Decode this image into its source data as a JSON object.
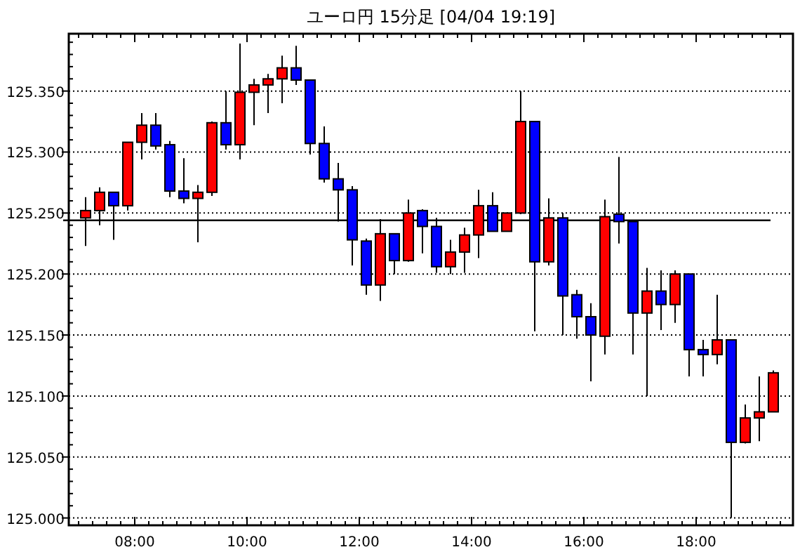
{
  "chart_data": {
    "type": "candlestick",
    "title": "ユーロ円 15分足 [04/04 19:19]",
    "x": [
      7.125,
      7.375,
      7.625,
      7.875,
      8.125,
      8.375,
      8.625,
      8.875,
      9.125,
      9.375,
      9.625,
      9.875,
      10.125,
      10.375,
      10.625,
      10.875,
      11.125,
      11.375,
      11.625,
      11.875,
      12.125,
      12.375,
      12.625,
      12.875,
      13.125,
      13.375,
      13.625,
      13.875,
      14.125,
      14.375,
      14.625,
      14.875,
      15.125,
      15.375,
      15.625,
      15.875,
      16.125,
      16.375,
      16.625,
      16.875,
      17.125,
      17.375,
      17.625,
      17.875,
      18.125,
      18.375,
      18.625,
      18.875,
      19.125,
      19.375
    ],
    "ohlc": [
      [
        125.246,
        125.263,
        125.223,
        125.252
      ],
      [
        125.252,
        125.271,
        125.24,
        125.267
      ],
      [
        125.267,
        125.267,
        125.228,
        125.256
      ],
      [
        125.256,
        125.308,
        125.252,
        125.308
      ],
      [
        125.308,
        125.332,
        125.294,
        125.322
      ],
      [
        125.322,
        125.332,
        125.302,
        125.305
      ],
      [
        125.306,
        125.309,
        125.263,
        125.268
      ],
      [
        125.268,
        125.295,
        125.258,
        125.262
      ],
      [
        125.262,
        125.273,
        125.226,
        125.267
      ],
      [
        125.267,
        125.325,
        125.264,
        125.324
      ],
      [
        125.324,
        125.35,
        125.302,
        125.306
      ],
      [
        125.306,
        125.389,
        125.294,
        125.349
      ],
      [
        125.349,
        125.36,
        125.322,
        125.355
      ],
      [
        125.355,
        125.364,
        125.332,
        125.36
      ],
      [
        125.36,
        125.379,
        125.34,
        125.369
      ],
      [
        125.369,
        125.387,
        125.355,
        125.359
      ],
      [
        125.359,
        125.359,
        125.298,
        125.307
      ],
      [
        125.307,
        125.321,
        125.275,
        125.278
      ],
      [
        125.278,
        125.291,
        125.243,
        125.269
      ],
      [
        125.269,
        125.272,
        125.207,
        125.228
      ],
      [
        125.227,
        125.229,
        125.183,
        125.191
      ],
      [
        125.191,
        125.245,
        125.178,
        125.233
      ],
      [
        125.233,
        125.233,
        125.2,
        125.211
      ],
      [
        125.211,
        125.261,
        125.21,
        125.25
      ],
      [
        125.252,
        125.253,
        125.217,
        125.239
      ],
      [
        125.239,
        125.246,
        125.201,
        125.206
      ],
      [
        125.206,
        125.228,
        125.2,
        125.218
      ],
      [
        125.218,
        125.238,
        125.201,
        125.232
      ],
      [
        125.232,
        125.269,
        125.213,
        125.256
      ],
      [
        125.256,
        125.267,
        125.235,
        125.235
      ],
      [
        125.235,
        125.25,
        125.235,
        125.25
      ],
      [
        125.25,
        125.35,
        125.249,
        125.325
      ],
      [
        125.325,
        125.325,
        125.153,
        125.21
      ],
      [
        125.21,
        125.262,
        125.207,
        125.246
      ],
      [
        125.246,
        125.25,
        125.15,
        125.182
      ],
      [
        125.183,
        125.187,
        125.147,
        125.165
      ],
      [
        125.165,
        125.176,
        125.112,
        125.15
      ],
      [
        125.149,
        125.261,
        125.134,
        125.247
      ],
      [
        125.249,
        125.296,
        125.225,
        125.243
      ],
      [
        125.243,
        125.243,
        125.134,
        125.168
      ],
      [
        125.168,
        125.205,
        125.1,
        125.186
      ],
      [
        125.186,
        125.203,
        125.154,
        125.175
      ],
      [
        125.175,
        125.203,
        125.16,
        125.2
      ],
      [
        125.2,
        125.2,
        125.116,
        125.138
      ],
      [
        125.138,
        125.146,
        125.116,
        125.134
      ],
      [
        125.134,
        125.183,
        125.126,
        125.146
      ],
      [
        125.146,
        125.146,
        125.0,
        125.062
      ],
      [
        125.062,
        125.093,
        125.061,
        125.082
      ],
      [
        125.082,
        125.116,
        125.063,
        125.087
      ],
      [
        125.087,
        125.121,
        125.087,
        125.119
      ]
    ],
    "colors": [
      "#ff0000",
      "#ff0000",
      "#0000ff",
      "#ff0000",
      "#ff0000",
      "#0000ff",
      "#0000ff",
      "#0000ff",
      "#ff0000",
      "#ff0000",
      "#0000ff",
      "#ff0000",
      "#ff0000",
      "#ff0000",
      "#ff0000",
      "#0000ff",
      "#0000ff",
      "#0000ff",
      "#0000ff",
      "#0000ff",
      "#0000ff",
      "#ff0000",
      "#0000ff",
      "#ff0000",
      "#0000ff",
      "#0000ff",
      "#ff0000",
      "#ff0000",
      "#ff0000",
      "#0000ff",
      "#ff0000",
      "#ff0000",
      "#0000ff",
      "#ff0000",
      "#0000ff",
      "#0000ff",
      "#0000ff",
      "#ff0000",
      "#0000ff",
      "#0000ff",
      "#ff0000",
      "#0000ff",
      "#ff0000",
      "#0000ff",
      "#0000ff",
      "#ff0000",
      "#0000ff",
      "#ff0000",
      "#ff0000",
      "#ff0000"
    ],
    "xlim": [
      6.825,
      19.725
    ],
    "xticks": [
      {
        "value": 8,
        "label": "08:00"
      },
      {
        "value": 10,
        "label": "10:00"
      },
      {
        "value": 12,
        "label": "12:00"
      },
      {
        "value": 14,
        "label": "14:00"
      },
      {
        "value": 16,
        "label": "16:00"
      },
      {
        "value": 18,
        "label": "18:00"
      }
    ],
    "ylim": [
      124.994,
      125.397
    ],
    "yticks": [
      {
        "value": 125.0,
        "label": "125.000"
      },
      {
        "value": 125.05,
        "label": "125.050"
      },
      {
        "value": 125.1,
        "label": "125.100"
      },
      {
        "value": 125.15,
        "label": "125.150"
      },
      {
        "value": 125.2,
        "label": "125.200"
      },
      {
        "value": 125.25,
        "label": "125.250"
      },
      {
        "value": 125.3,
        "label": "125.300"
      },
      {
        "value": 125.35,
        "label": "125.350"
      }
    ],
    "grid": "y",
    "ref_lines": [
      {
        "axis": "y",
        "value": 125.244,
        "color": "#000000"
      }
    ]
  }
}
